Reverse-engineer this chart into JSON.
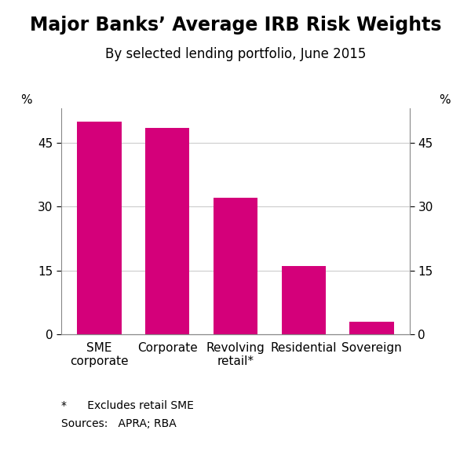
{
  "title": "Major Banks’ Average IRB Risk Weights",
  "subtitle": "By selected lending portfolio, June 2015",
  "categories": [
    "SME\ncorporate",
    "Corporate",
    "Revolving\nretail*",
    "Residential",
    "Sovereign"
  ],
  "values": [
    50.0,
    48.5,
    32.0,
    16.0,
    3.0
  ],
  "bar_color": "#D4007A",
  "ylabel_left": "%",
  "ylabel_right": "%",
  "ylim": [
    0,
    53
  ],
  "yticks": [
    0,
    15,
    30,
    45
  ],
  "ytick_labels": [
    "0",
    "15",
    "30",
    "45"
  ],
  "footnote1": "*      Excludes retail SME",
  "footnote2": "Sources:   APRA; RBA",
  "background_color": "#ffffff",
  "title_fontsize": 17,
  "subtitle_fontsize": 12,
  "tick_fontsize": 11,
  "label_fontsize": 11,
  "footnote_fontsize": 10
}
